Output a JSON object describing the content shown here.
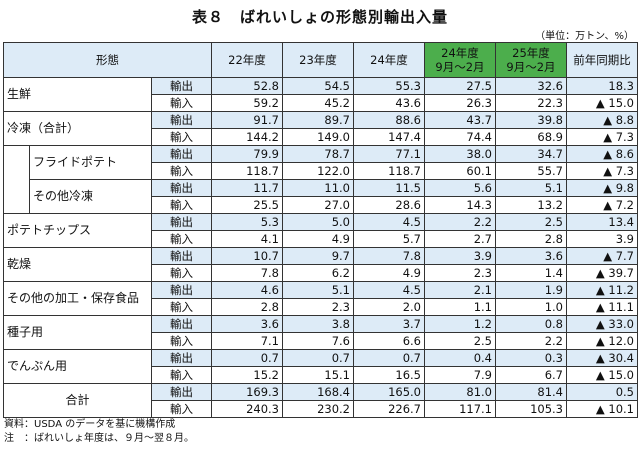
{
  "title": "表８　ばれいしょの形態別輸出入量",
  "unit": "（単位：万トン、%）",
  "headers": {
    "category": "形態",
    "y22": "22年度",
    "y23": "23年度",
    "y24": "24年度",
    "p24_line1": "24年度",
    "p24_line2": "9月～2月",
    "p25_line1": "25年度",
    "p25_line2": "9月～2月",
    "yoy": "前年同期比"
  },
  "rows": [
    {
      "cat1": "生鮮",
      "cat2": "",
      "type": "輸出",
      "v22": "52.8",
      "v23": "54.5",
      "v24": "55.3",
      "p24": "27.5",
      "p25": "32.6",
      "yoy": "18.3"
    },
    {
      "type": "輸入",
      "v22": "59.2",
      "v23": "45.2",
      "v24": "43.6",
      "p24": "26.3",
      "p25": "22.3",
      "yoy": "▲ 15.0"
    },
    {
      "cat1": "冷凍（合計）",
      "type": "輸出",
      "v22": "91.7",
      "v23": "89.7",
      "v24": "88.6",
      "p24": "43.7",
      "p25": "39.8",
      "yoy": "▲ 8.8"
    },
    {
      "type": "輸入",
      "v22": "144.2",
      "v23": "149.0",
      "v24": "147.4",
      "p24": "74.4",
      "p25": "68.9",
      "yoy": "▲ 7.3"
    },
    {
      "cat2": "フライドポテト",
      "type": "輸出",
      "v22": "79.9",
      "v23": "78.7",
      "v24": "77.1",
      "p24": "38.0",
      "p25": "34.7",
      "yoy": "▲ 8.6"
    },
    {
      "type": "輸入",
      "v22": "118.7",
      "v23": "122.0",
      "v24": "118.7",
      "p24": "60.1",
      "p25": "55.7",
      "yoy": "▲ 7.3"
    },
    {
      "cat2": "その他冷凍",
      "type": "輸出",
      "v22": "11.7",
      "v23": "11.0",
      "v24": "11.5",
      "p24": "5.6",
      "p25": "5.1",
      "yoy": "▲ 9.8"
    },
    {
      "type": "輸入",
      "v22": "25.5",
      "v23": "27.0",
      "v24": "28.6",
      "p24": "14.3",
      "p25": "13.2",
      "yoy": "▲ 7.2"
    },
    {
      "cat1": "ポテトチップス",
      "type": "輸出",
      "v22": "5.3",
      "v23": "5.0",
      "v24": "4.5",
      "p24": "2.2",
      "p25": "2.5",
      "yoy": "13.4"
    },
    {
      "type": "輸入",
      "v22": "4.1",
      "v23": "4.9",
      "v24": "5.7",
      "p24": "2.7",
      "p25": "2.8",
      "yoy": "3.9"
    },
    {
      "cat1": "乾燥",
      "type": "輸出",
      "v22": "10.7",
      "v23": "9.7",
      "v24": "7.8",
      "p24": "3.9",
      "p25": "3.6",
      "yoy": "▲ 7.7"
    },
    {
      "type": "輸入",
      "v22": "7.8",
      "v23": "6.2",
      "v24": "4.9",
      "p24": "2.3",
      "p25": "1.4",
      "yoy": "▲ 39.7"
    },
    {
      "cat1": "その他の加工・保存食品",
      "type": "輸出",
      "v22": "4.6",
      "v23": "5.1",
      "v24": "4.5",
      "p24": "2.1",
      "p25": "1.9",
      "yoy": "▲ 11.2"
    },
    {
      "type": "輸入",
      "v22": "2.8",
      "v23": "2.3",
      "v24": "2.0",
      "p24": "1.1",
      "p25": "1.0",
      "yoy": "▲ 11.1"
    },
    {
      "cat1": "種子用",
      "type": "輸出",
      "v22": "3.6",
      "v23": "3.8",
      "v24": "3.7",
      "p24": "1.2",
      "p25": "0.8",
      "yoy": "▲ 33.0"
    },
    {
      "type": "輸入",
      "v22": "7.1",
      "v23": "7.6",
      "v24": "6.6",
      "p24": "2.5",
      "p25": "2.2",
      "yoy": "▲ 12.0"
    },
    {
      "cat1": "でんぷん用",
      "type": "輸出",
      "v22": "0.7",
      "v23": "0.7",
      "v24": "0.7",
      "p24": "0.4",
      "p25": "0.3",
      "yoy": "▲ 30.4"
    },
    {
      "type": "輸入",
      "v22": "15.2",
      "v23": "15.1",
      "v24": "16.5",
      "p24": "7.9",
      "p25": "6.7",
      "yoy": "▲ 15.0"
    },
    {
      "cat1": "合計",
      "type": "輸出",
      "v22": "169.3",
      "v23": "168.4",
      "v24": "165.0",
      "p24": "81.0",
      "p25": "81.4",
      "yoy": "0.5"
    },
    {
      "type": "輸入",
      "v22": "240.3",
      "v23": "230.2",
      "v24": "226.7",
      "p24": "117.1",
      "p25": "105.3",
      "yoy": "▲ 10.1"
    }
  ],
  "notes": {
    "source": "資料：USDA のデータを基に機構作成",
    "note": "注　：ばれいしょ年度は、９月～翌８月。"
  }
}
